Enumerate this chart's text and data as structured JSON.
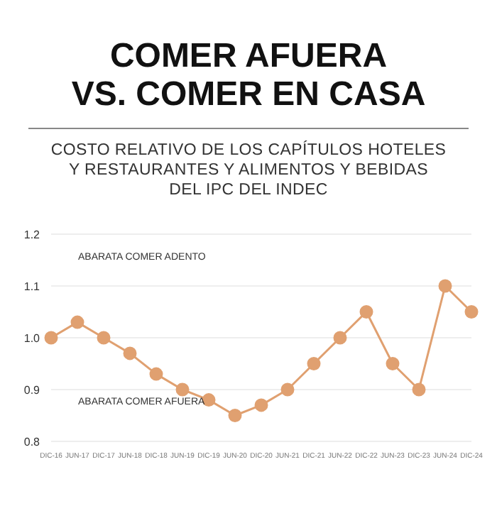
{
  "chart_data": {
    "type": "line",
    "title": "COMER AFUERA\nVS. COMER EN CASA",
    "subtitle": "COSTO RELATIVO DE LOS CAPÍTULOS HOTELES\nY RESTAURANTES Y ALIMENTOS Y BEBIDAS\nDEL IPC DEL INDEC",
    "categories": [
      "DIC-16",
      "JUN-17",
      "DIC-17",
      "JUN-18",
      "DIC-18",
      "JUN-19",
      "DIC-19",
      "JUN-20",
      "DIC-20",
      "JUN-21",
      "DIC-21",
      "JUN-22",
      "DIC-22",
      "JUN-23",
      "DIC-23",
      "JUN-24",
      "DIC-24"
    ],
    "series": [
      {
        "color": "#e0a070",
        "values": [
          1.0,
          1.03,
          1.0,
          0.97,
          0.93,
          0.9,
          0.88,
          0.85,
          0.87,
          0.9,
          0.95,
          1.0,
          1.05,
          0.95,
          0.9,
          1.1,
          1.05
        ]
      }
    ],
    "ylim": [
      0.8,
      1.2
    ],
    "yticks": [
      {
        "value": 0.8,
        "label": "0.8"
      },
      {
        "value": 0.9,
        "label": "0.9"
      },
      {
        "value": 1.0,
        "label": "1.0"
      },
      {
        "value": 1.1,
        "label": "1.1"
      },
      {
        "value": 1.2,
        "label": "1.2"
      }
    ],
    "annotations": [
      "ABARATA COMER ADENTO",
      "ABARATA COMER AFUERA"
    ],
    "grid": "y",
    "marker": "circle",
    "line_style": "solid"
  }
}
